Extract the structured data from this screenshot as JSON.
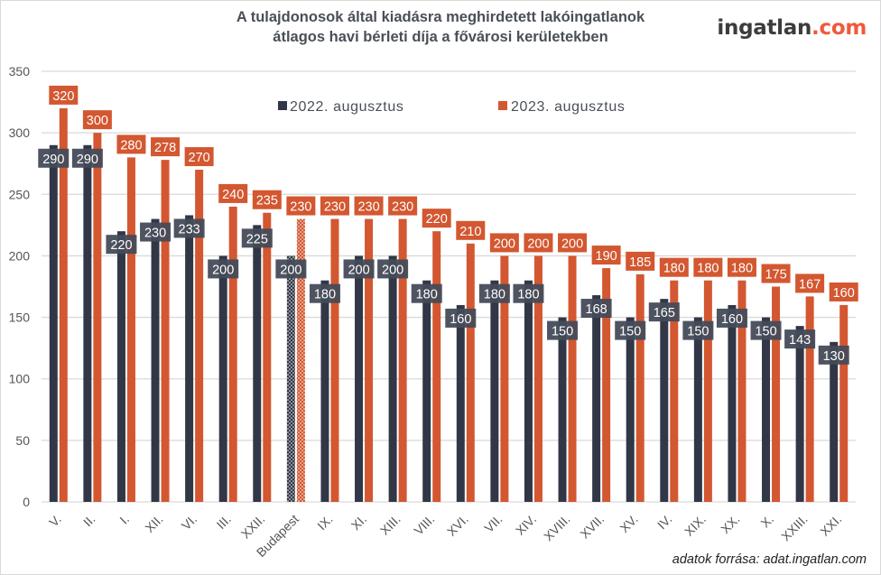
{
  "header": {
    "title_line1": "A tulajdonosok által kiadásra meghirdetett lakóingatlanok",
    "title_line2": "átlagos havi bérleti díja a fővárosi kerületekben",
    "logo_main": "ingatlan",
    "logo_suffix": ".com"
  },
  "footer": {
    "source": "adatok forrása: adat.ingatlan.com"
  },
  "colors": {
    "series_2022": "#313746",
    "series_2023": "#d35730",
    "label_bg_2022": "#454b59",
    "grid": "#d9d9d9"
  },
  "chart_data": {
    "type": "bar",
    "title": "A tulajdonosok által kiadásra meghirdetett lakóingatlanok átlagos havi bérleti díja a fővárosi kerületekben",
    "xlabel": "",
    "ylabel": "",
    "ylim": [
      0,
      350
    ],
    "yticks": [
      0,
      50,
      100,
      150,
      200,
      250,
      300,
      350
    ],
    "grid": true,
    "legend_position": "top-center",
    "categories": [
      "V.",
      "II.",
      "I.",
      "XII.",
      "VI.",
      "III.",
      "XXII.",
      "Budapest",
      "IX.",
      "XI.",
      "XIII.",
      "VIII.",
      "XVI.",
      "VII.",
      "XIV.",
      "XVIII.",
      "XVII.",
      "XV.",
      "IV.",
      "XIX.",
      "XX.",
      "X.",
      "XXIII.",
      "XXI."
    ],
    "highlight_category": "Budapest",
    "series": [
      {
        "name": "2022. augusztus",
        "values": [
          290,
          290,
          220,
          230,
          233,
          200,
          225,
          200,
          180,
          200,
          200,
          180,
          160,
          180,
          180,
          150,
          168,
          150,
          165,
          150,
          160,
          150,
          143,
          130
        ]
      },
      {
        "name": "2023. augusztus",
        "values": [
          320,
          300,
          280,
          278,
          270,
          240,
          235,
          230,
          230,
          230,
          230,
          220,
          210,
          200,
          200,
          200,
          190,
          185,
          180,
          180,
          180,
          175,
          167,
          160
        ]
      }
    ]
  }
}
